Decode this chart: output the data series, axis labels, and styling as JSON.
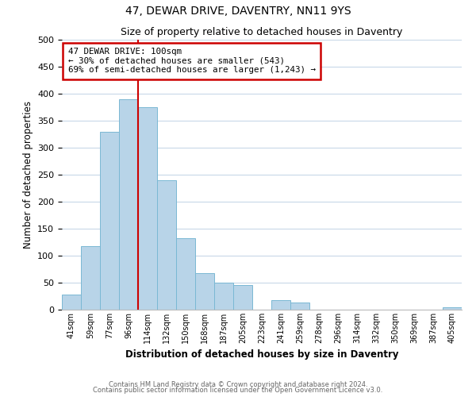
{
  "title": "47, DEWAR DRIVE, DAVENTRY, NN11 9YS",
  "subtitle": "Size of property relative to detached houses in Daventry",
  "xlabel": "Distribution of detached houses by size in Daventry",
  "ylabel": "Number of detached properties",
  "bar_labels": [
    "41sqm",
    "59sqm",
    "77sqm",
    "96sqm",
    "114sqm",
    "132sqm",
    "150sqm",
    "168sqm",
    "187sqm",
    "205sqm",
    "223sqm",
    "241sqm",
    "259sqm",
    "278sqm",
    "296sqm",
    "314sqm",
    "332sqm",
    "350sqm",
    "369sqm",
    "387sqm",
    "405sqm"
  ],
  "bar_heights": [
    28,
    118,
    330,
    390,
    375,
    240,
    132,
    68,
    50,
    46,
    0,
    18,
    13,
    0,
    0,
    0,
    0,
    0,
    0,
    0,
    5
  ],
  "bar_color": "#b8d4e8",
  "bar_edge_color": "#7ab8d4",
  "vline_x_index": 3,
  "vline_color": "#cc0000",
  "annotation_title": "47 DEWAR DRIVE: 100sqm",
  "annotation_line1": "← 30% of detached houses are smaller (543)",
  "annotation_line2": "69% of semi-detached houses are larger (1,243) →",
  "annotation_box_color": "#ffffff",
  "annotation_box_edge": "#cc0000",
  "ylim": [
    0,
    500
  ],
  "yticks": [
    0,
    50,
    100,
    150,
    200,
    250,
    300,
    350,
    400,
    450,
    500
  ],
  "footer1": "Contains HM Land Registry data © Crown copyright and database right 2024.",
  "footer2": "Contains public sector information licensed under the Open Government Licence v3.0.",
  "background_color": "#ffffff",
  "grid_color": "#c8d8e8"
}
